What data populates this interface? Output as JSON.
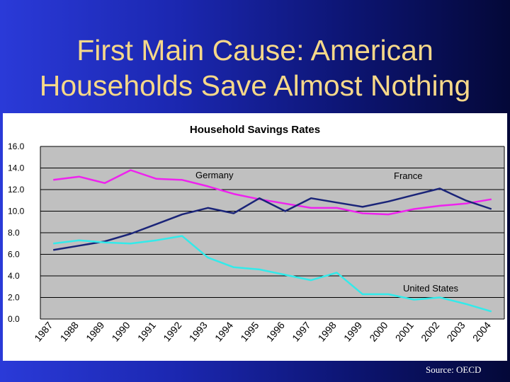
{
  "slide": {
    "title_line1": "First Main Cause: American",
    "title_line2": "Households Save Almost Nothing",
    "source": "Source: OECD"
  },
  "colors": {
    "germany": "#ee22ee",
    "france": "#1a2478",
    "united_states": "#33eaea",
    "plot_bg": "#c0c0c0"
  },
  "chart_data": {
    "type": "line",
    "title": "Household Savings Rates",
    "xlabel": "",
    "ylabel": "",
    "ylim": [
      0,
      16
    ],
    "yticks": [
      "0.0",
      "2.0",
      "4.0",
      "6.0",
      "8.0",
      "10.0",
      "12.0",
      "14.0",
      "16.0"
    ],
    "categories": [
      "1987",
      "1988",
      "1989",
      "1990",
      "1991",
      "1992",
      "1993",
      "1994",
      "1995",
      "1996",
      "1997",
      "1998",
      "1999",
      "2000",
      "2001",
      "2002",
      "2003",
      "2004"
    ],
    "series": [
      {
        "name": "Germany",
        "color": "#ee22ee",
        "values": [
          12.9,
          13.2,
          12.6,
          13.8,
          13.0,
          12.9,
          12.3,
          11.6,
          11.1,
          10.7,
          10.3,
          10.3,
          9.8,
          9.7,
          10.2,
          10.5,
          10.7,
          11.1
        ]
      },
      {
        "name": "France",
        "color": "#1a2478",
        "values": [
          6.4,
          6.8,
          7.2,
          7.9,
          8.8,
          9.7,
          10.3,
          9.8,
          11.2,
          10.0,
          11.2,
          10.8,
          10.4,
          10.9,
          11.5,
          12.1,
          11.0,
          10.2
        ]
      },
      {
        "name": "United States",
        "color": "#33eaea",
        "values": [
          7.0,
          7.3,
          7.1,
          7.0,
          7.3,
          7.7,
          5.7,
          4.8,
          4.6,
          4.1,
          3.6,
          4.3,
          2.3,
          2.3,
          1.8,
          2.0,
          1.4,
          0.7
        ]
      }
    ],
    "annotations": [
      "Germany",
      "France",
      "United States"
    ]
  }
}
